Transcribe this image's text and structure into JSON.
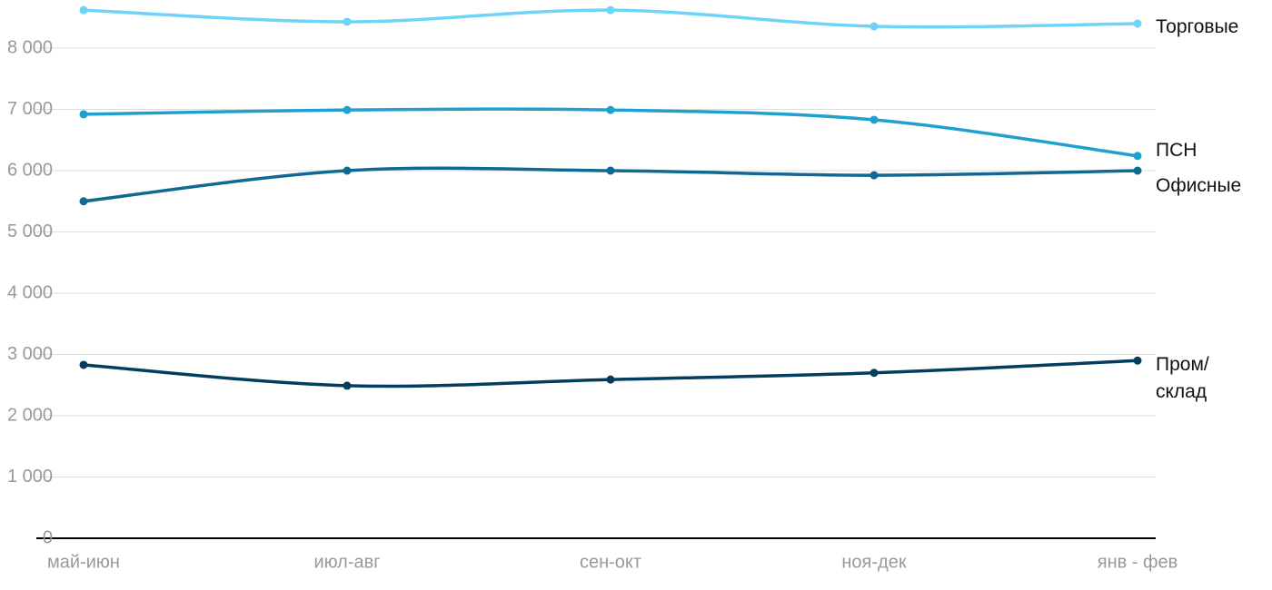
{
  "chart_data": {
    "type": "line",
    "categories": [
      "май-июн",
      "июл-авг",
      "сен-окт",
      "ноя-дек",
      "янв - фев"
    ],
    "series": [
      {
        "name": "Торговые",
        "color": "#6dd3f7",
        "values": [
          8620,
          8430,
          8620,
          8355,
          8400
        ]
      },
      {
        "name": "ПСН",
        "color": "#1fa1d0",
        "values": [
          6920,
          6990,
          6990,
          6830,
          6240
        ]
      },
      {
        "name": "Офисные",
        "color": "#0f6a91",
        "values": [
          5500,
          6000,
          6000,
          5925,
          6000
        ]
      },
      {
        "name": "Пром/ склад",
        "color": "#053d5f",
        "values": [
          2830,
          2490,
          2590,
          2700,
          2900
        ]
      }
    ],
    "ylim": [
      0,
      8700
    ],
    "yticks": [
      0,
      {
        "value": 1000,
        "label": "1 000"
      },
      {
        "value": 2000,
        "label": "2 000"
      },
      {
        "value": 3000,
        "label": "3 000"
      },
      {
        "value": 4000,
        "label": "4 000"
      },
      {
        "value": 5000,
        "label": "5 000"
      },
      {
        "value": 6000,
        "label": "6 000"
      },
      {
        "value": 7000,
        "label": "7 000"
      },
      {
        "value": 8000,
        "label": "8 000"
      }
    ],
    "grid": true
  }
}
